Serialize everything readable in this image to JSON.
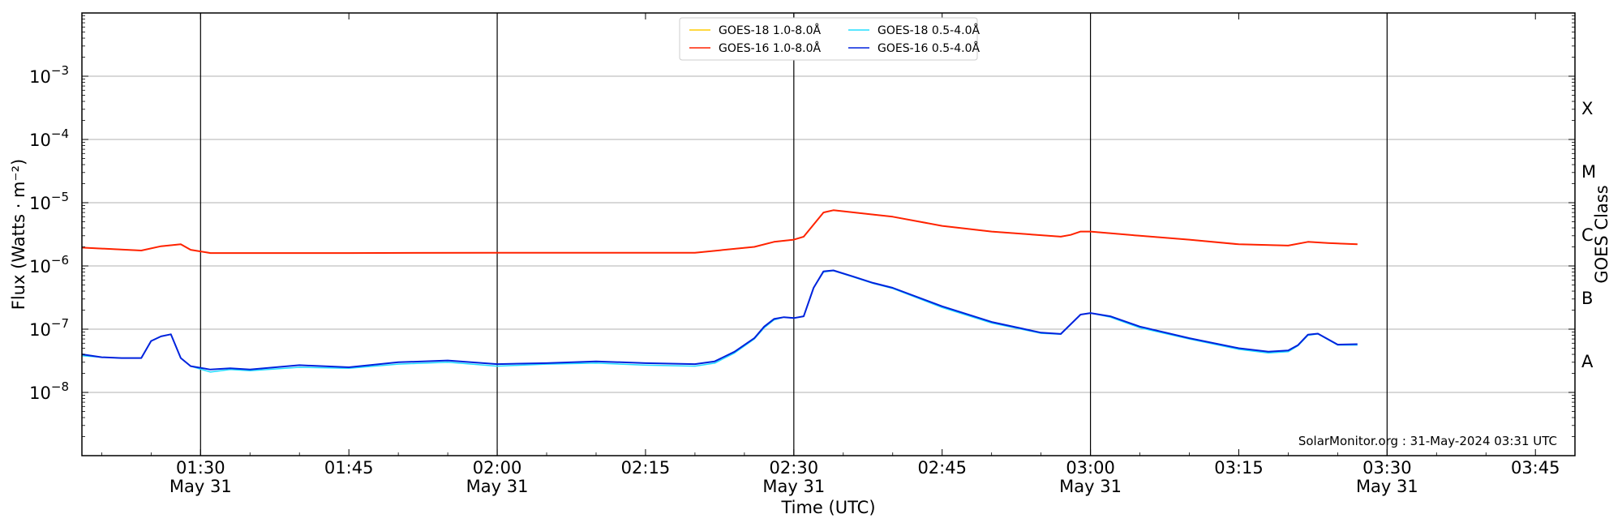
{
  "chart_data": {
    "type": "line",
    "title": "",
    "xlabel": "Time (UTC)",
    "ylabel": "Flux (Watts · m⁻²)",
    "ylabel_right": "GOES Class",
    "y_scale": "log",
    "ylim": [
      1e-09,
      0.01
    ],
    "xlim": [
      "01:18",
      "03:49"
    ],
    "grid": "horizontal at decades, vertical at 30-minute marks",
    "legend_position": "top-center",
    "x_ticks": [
      {
        "time": "01:30",
        "label": "01:30",
        "sublabel": "May 31"
      },
      {
        "time": "01:45",
        "label": "01:45",
        "sublabel": ""
      },
      {
        "time": "02:00",
        "label": "02:00",
        "sublabel": "May 31"
      },
      {
        "time": "02:15",
        "label": "02:15",
        "sublabel": ""
      },
      {
        "time": "02:30",
        "label": "02:30",
        "sublabel": "May 31"
      },
      {
        "time": "02:45",
        "label": "02:45",
        "sublabel": ""
      },
      {
        "time": "03:00",
        "label": "03:00",
        "sublabel": "May 31"
      },
      {
        "time": "03:15",
        "label": "03:15",
        "sublabel": ""
      },
      {
        "time": "03:30",
        "label": "03:30",
        "sublabel": "May 31"
      },
      {
        "time": "03:45",
        "label": "03:45",
        "sublabel": ""
      }
    ],
    "y_ticks": [
      {
        "value": 1e-08,
        "mantissa": "10",
        "exp": "−8"
      },
      {
        "value": 1e-07,
        "mantissa": "10",
        "exp": "−7"
      },
      {
        "value": 1e-06,
        "mantissa": "10",
        "exp": "−6"
      },
      {
        "value": 1e-05,
        "mantissa": "10",
        "exp": "−5"
      },
      {
        "value": 0.0001,
        "mantissa": "10",
        "exp": "−4"
      },
      {
        "value": 0.001,
        "mantissa": "10",
        "exp": "−3"
      }
    ],
    "goes_classes": [
      {
        "label": "A",
        "value": 3.16e-08
      },
      {
        "label": "B",
        "value": 3.16e-07
      },
      {
        "label": "C",
        "value": 3.16e-06
      },
      {
        "label": "M",
        "value": 3.16e-05
      },
      {
        "label": "X",
        "value": 0.000316
      }
    ],
    "series": [
      {
        "name": "GOES-18 1.0-8.0Å",
        "color": "#ffcc00",
        "width": 1.5,
        "points": [
          [
            "01:18",
            1.95e-06
          ],
          [
            "01:24",
            1.75e-06
          ],
          [
            "01:26",
            2.05e-06
          ],
          [
            "01:28",
            2.2e-06
          ],
          [
            "01:29",
            1.8e-06
          ],
          [
            "01:31",
            1.6e-06
          ],
          [
            "01:45",
            1.6e-06
          ],
          [
            "02:00",
            1.62e-06
          ],
          [
            "02:20",
            1.62e-06
          ],
          [
            "02:26",
            2e-06
          ],
          [
            "02:28",
            2.4e-06
          ],
          [
            "02:30",
            2.6e-06
          ],
          [
            "02:31",
            2.9e-06
          ],
          [
            "02:32",
            4.5e-06
          ],
          [
            "02:33",
            7e-06
          ],
          [
            "02:34",
            7.6e-06
          ],
          [
            "02:38",
            6.5e-06
          ],
          [
            "02:40",
            6e-06
          ],
          [
            "02:45",
            4.3e-06
          ],
          [
            "02:50",
            3.5e-06
          ],
          [
            "02:57",
            2.9e-06
          ],
          [
            "02:58",
            3.1e-06
          ],
          [
            "02:59",
            3.5e-06
          ],
          [
            "03:00",
            3.5e-06
          ],
          [
            "03:05",
            3e-06
          ],
          [
            "03:10",
            2.6e-06
          ],
          [
            "03:15",
            2.2e-06
          ],
          [
            "03:20",
            2.1e-06
          ],
          [
            "03:22",
            2.4e-06
          ],
          [
            "03:24",
            2.3e-06
          ],
          [
            "03:27",
            2.2e-06
          ]
        ]
      },
      {
        "name": "GOES-16 1.0-8.0Å",
        "color": "#ff2200",
        "width": 2,
        "points": [
          [
            "01:18",
            1.95e-06
          ],
          [
            "01:24",
            1.75e-06
          ],
          [
            "01:26",
            2.05e-06
          ],
          [
            "01:28",
            2.2e-06
          ],
          [
            "01:29",
            1.8e-06
          ],
          [
            "01:31",
            1.6e-06
          ],
          [
            "01:45",
            1.6e-06
          ],
          [
            "02:00",
            1.62e-06
          ],
          [
            "02:20",
            1.62e-06
          ],
          [
            "02:26",
            2e-06
          ],
          [
            "02:28",
            2.4e-06
          ],
          [
            "02:30",
            2.6e-06
          ],
          [
            "02:31",
            2.9e-06
          ],
          [
            "02:32",
            4.5e-06
          ],
          [
            "02:33",
            7e-06
          ],
          [
            "02:34",
            7.6e-06
          ],
          [
            "02:38",
            6.5e-06
          ],
          [
            "02:40",
            6e-06
          ],
          [
            "02:45",
            4.3e-06
          ],
          [
            "02:50",
            3.5e-06
          ],
          [
            "02:57",
            2.9e-06
          ],
          [
            "02:58",
            3.1e-06
          ],
          [
            "02:59",
            3.5e-06
          ],
          [
            "03:00",
            3.5e-06
          ],
          [
            "03:05",
            3e-06
          ],
          [
            "03:10",
            2.6e-06
          ],
          [
            "03:15",
            2.2e-06
          ],
          [
            "03:20",
            2.1e-06
          ],
          [
            "03:22",
            2.4e-06
          ],
          [
            "03:24",
            2.3e-06
          ],
          [
            "03:27",
            2.2e-06
          ]
        ]
      },
      {
        "name": "GOES-18 0.5-4.0Å",
        "color": "#22ddff",
        "width": 1.5,
        "points": [
          [
            "01:18",
            3.8e-08
          ],
          [
            "01:20",
            3.6e-08
          ],
          [
            "01:22",
            3.5e-08
          ],
          [
            "01:24",
            3.5e-08
          ],
          [
            "01:25",
            6.5e-08
          ],
          [
            "01:26",
            7.7e-08
          ],
          [
            "01:27",
            8.3e-08
          ],
          [
            "01:28",
            3.5e-08
          ],
          [
            "01:29",
            2.6e-08
          ],
          [
            "01:31",
            2.1e-08
          ],
          [
            "01:33",
            2.3e-08
          ],
          [
            "01:35",
            2.2e-08
          ],
          [
            "01:40",
            2.5e-08
          ],
          [
            "01:45",
            2.4e-08
          ],
          [
            "01:50",
            2.8e-08
          ],
          [
            "01:55",
            3e-08
          ],
          [
            "02:00",
            2.6e-08
          ],
          [
            "02:05",
            2.8e-08
          ],
          [
            "02:10",
            2.9e-08
          ],
          [
            "02:15",
            2.7e-08
          ],
          [
            "02:20",
            2.6e-08
          ],
          [
            "02:22",
            2.9e-08
          ],
          [
            "02:24",
            4.2e-08
          ],
          [
            "02:26",
            7e-08
          ],
          [
            "02:27",
            1.05e-07
          ],
          [
            "02:28",
            1.4e-07
          ],
          [
            "02:29",
            1.55e-07
          ],
          [
            "02:30",
            1.5e-07
          ],
          [
            "02:31",
            1.6e-07
          ],
          [
            "02:32",
            4.5e-07
          ],
          [
            "02:33",
            8e-07
          ],
          [
            "02:34",
            8.4e-07
          ],
          [
            "02:36",
            6.7e-07
          ],
          [
            "02:38",
            5.3e-07
          ],
          [
            "02:40",
            4.4e-07
          ],
          [
            "02:45",
            2.2e-07
          ],
          [
            "02:50",
            1.25e-07
          ],
          [
            "02:55",
            8.6e-08
          ],
          [
            "02:57",
            8.3e-08
          ],
          [
            "02:59",
            1.7e-07
          ],
          [
            "03:00",
            1.8e-07
          ],
          [
            "03:02",
            1.55e-07
          ],
          [
            "03:05",
            1.05e-07
          ],
          [
            "03:10",
            7e-08
          ],
          [
            "03:15",
            4.8e-08
          ],
          [
            "03:18",
            4.2e-08
          ],
          [
            "03:20",
            4.4e-08
          ],
          [
            "03:21",
            5.5e-08
          ],
          [
            "03:22",
            8e-08
          ],
          [
            "03:23",
            8.4e-08
          ],
          [
            "03:25",
            5.6e-08
          ],
          [
            "03:27",
            5.6e-08
          ]
        ]
      },
      {
        "name": "GOES-16 0.5-4.0Å",
        "color": "#0022dd",
        "width": 2,
        "points": [
          [
            "01:18",
            4e-08
          ],
          [
            "01:20",
            3.6e-08
          ],
          [
            "01:22",
            3.5e-08
          ],
          [
            "01:24",
            3.5e-08
          ],
          [
            "01:25",
            6.5e-08
          ],
          [
            "01:26",
            7.7e-08
          ],
          [
            "01:27",
            8.3e-08
          ],
          [
            "01:28",
            3.5e-08
          ],
          [
            "01:29",
            2.6e-08
          ],
          [
            "01:31",
            2.3e-08
          ],
          [
            "01:33",
            2.4e-08
          ],
          [
            "01:35",
            2.3e-08
          ],
          [
            "01:40",
            2.7e-08
          ],
          [
            "01:45",
            2.5e-08
          ],
          [
            "01:50",
            3e-08
          ],
          [
            "01:55",
            3.2e-08
          ],
          [
            "02:00",
            2.8e-08
          ],
          [
            "02:05",
            2.9e-08
          ],
          [
            "02:10",
            3.1e-08
          ],
          [
            "02:15",
            2.9e-08
          ],
          [
            "02:20",
            2.8e-08
          ],
          [
            "02:22",
            3.1e-08
          ],
          [
            "02:24",
            4.4e-08
          ],
          [
            "02:26",
            7.2e-08
          ],
          [
            "02:27",
            1.1e-07
          ],
          [
            "02:28",
            1.45e-07
          ],
          [
            "02:29",
            1.55e-07
          ],
          [
            "02:30",
            1.5e-07
          ],
          [
            "02:31",
            1.6e-07
          ],
          [
            "02:32",
            4.5e-07
          ],
          [
            "02:33",
            8.2e-07
          ],
          [
            "02:34",
            8.5e-07
          ],
          [
            "02:36",
            6.8e-07
          ],
          [
            "02:38",
            5.4e-07
          ],
          [
            "02:40",
            4.5e-07
          ],
          [
            "02:45",
            2.3e-07
          ],
          [
            "02:50",
            1.3e-07
          ],
          [
            "02:55",
            8.8e-08
          ],
          [
            "02:57",
            8.4e-08
          ],
          [
            "02:59",
            1.7e-07
          ],
          [
            "03:00",
            1.8e-07
          ],
          [
            "03:02",
            1.6e-07
          ],
          [
            "03:05",
            1.1e-07
          ],
          [
            "03:10",
            7.2e-08
          ],
          [
            "03:15",
            5e-08
          ],
          [
            "03:18",
            4.4e-08
          ],
          [
            "03:20",
            4.6e-08
          ],
          [
            "03:21",
            5.6e-08
          ],
          [
            "03:22",
            8.2e-08
          ],
          [
            "03:23",
            8.5e-08
          ],
          [
            "03:25",
            5.7e-08
          ],
          [
            "03:27",
            5.8e-08
          ]
        ]
      }
    ],
    "credit": "SolarMonitor.org : 31-May-2024 03:31 UTC"
  }
}
